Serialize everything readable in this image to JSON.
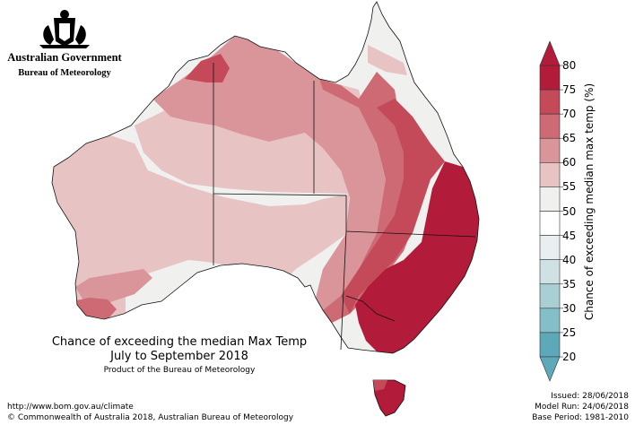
{
  "header": {
    "government": "Australian Government",
    "bureau": "Bureau of Meteorology"
  },
  "map": {
    "title_line1": "Chance of exceeding the median Max Temp",
    "title_line2": "July to September 2018",
    "product": "Product of the Bureau of Meteorology"
  },
  "colorbar": {
    "label": "Chance of exceeding median max temp (%)",
    "ticks": [
      "80",
      "75",
      "70",
      "65",
      "60",
      "55",
      "50",
      "45",
      "40",
      "35",
      "30",
      "25",
      "20"
    ],
    "colors_top_to_bottom": [
      "#b31b3a",
      "#c44a5a",
      "#cd6a73",
      "#d9959a",
      "#e8c3c4",
      "#f0f0ef",
      "#ffffff",
      "#e9eff0",
      "#cfe1e3",
      "#a9cfd5",
      "#84bfc9",
      "#5ea9b9"
    ]
  },
  "footer": {
    "url": "http://www.bom.gov.au/climate",
    "copyright": "© Commonwealth of Australia 2018, Australian Bureau of Meteorology",
    "issued": "Issued: 28/06/2018",
    "model_run": "Model Run: 24/06/2018",
    "base_period": "Base Period: 1981-2010"
  }
}
